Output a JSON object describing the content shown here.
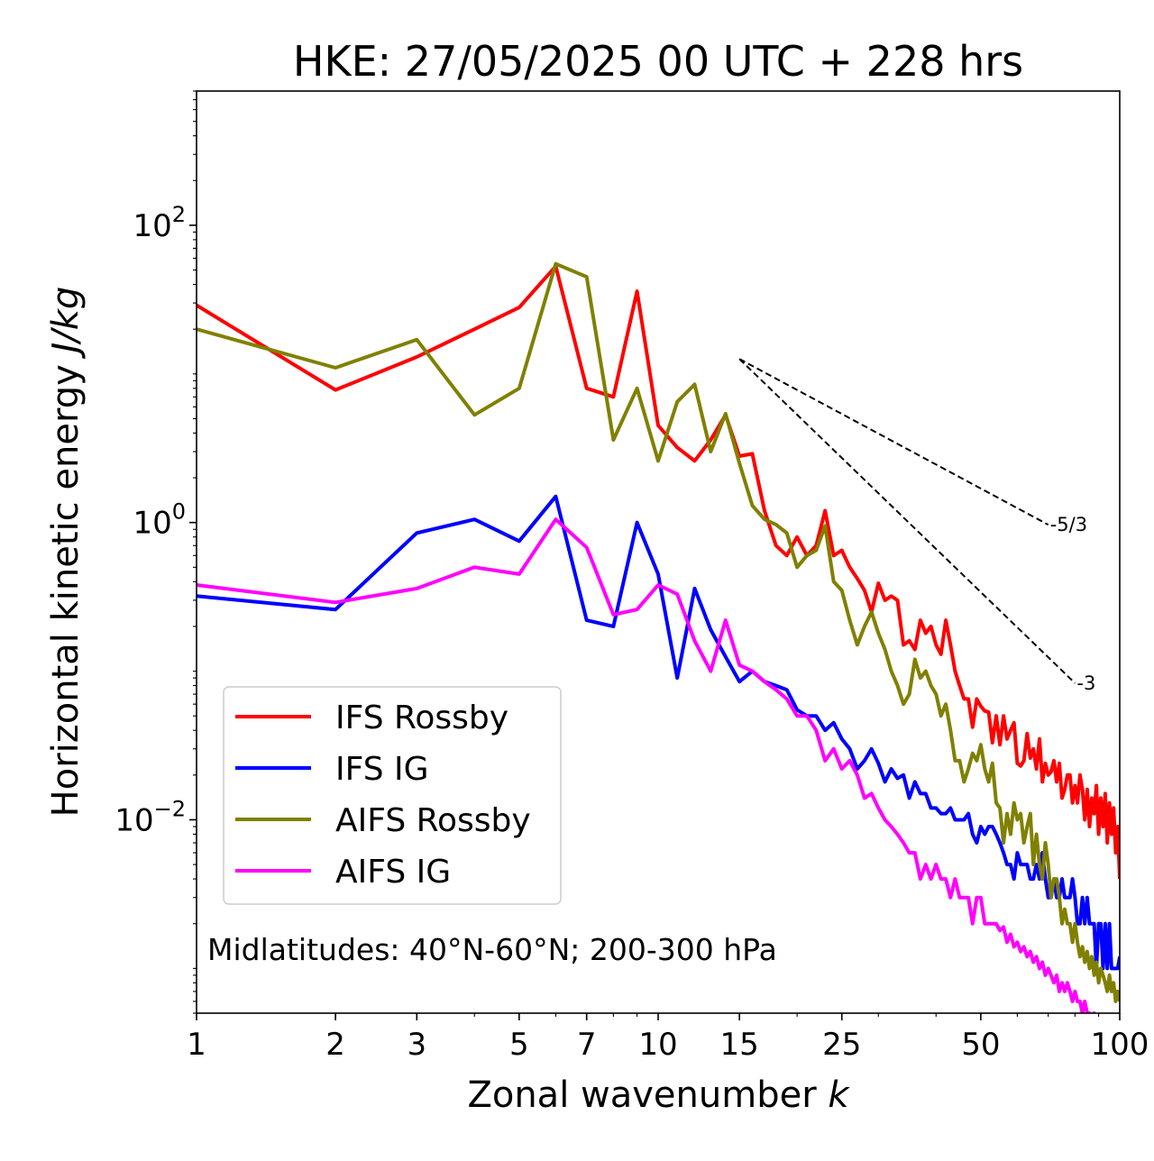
{
  "chart_data": {
    "type": "line",
    "title": "HKE: 27/05/2025 00 UTC + 228 hrs",
    "xlabel": "Zonal wavenumber",
    "xlabel_var": "k",
    "ylabel": "Horizontal kinetic energy",
    "ylabel_unit": "J/kg",
    "xscale": "log",
    "yscale": "log",
    "xlim": [
      1,
      100
    ],
    "ylim": [
      0.0005,
      800
    ],
    "x_ticks": [
      1,
      2,
      3,
      5,
      7,
      10,
      15,
      25,
      50,
      100
    ],
    "x_tick_labels": [
      "1",
      "2",
      "3",
      "5",
      "7",
      "10",
      "15",
      "25",
      "50",
      "100"
    ],
    "y_ticks": [
      0.01,
      1,
      100
    ],
    "y_tick_labels": [
      {
        "base": "10",
        "exp": "−2"
      },
      {
        "base": "10",
        "exp": "0"
      },
      {
        "base": "10",
        "exp": "2"
      }
    ],
    "legend_position": "lower-left",
    "annotation": "Midlatitudes: 40°N-60°N; 200-300 hPa",
    "reference_lines": [
      {
        "label": "-5/3",
        "slope": -1.6667,
        "x": [
          15,
          70
        ],
        "y0": 12.6
      },
      {
        "label": "-3",
        "slope": -3,
        "x": [
          15,
          80
        ],
        "y0": 12.6
      }
    ],
    "series": [
      {
        "name": "IFS Rossby",
        "color": "#ff0000",
        "x": [
          1,
          2,
          3,
          4,
          5,
          6,
          7,
          8,
          9,
          10,
          11,
          12,
          13,
          14,
          15,
          16,
          17,
          18,
          19,
          20,
          21,
          22,
          23,
          24,
          25,
          26,
          27,
          28,
          29,
          30,
          31,
          32,
          33,
          34,
          35,
          36,
          37,
          38,
          39,
          40,
          41,
          42,
          43,
          44,
          45,
          46,
          47,
          48,
          49,
          50,
          51,
          52,
          53,
          54,
          55,
          56,
          57,
          58,
          59,
          60,
          61,
          62,
          63,
          64,
          65,
          66,
          67,
          68,
          69,
          70,
          71,
          72,
          73,
          74,
          75,
          76,
          77,
          78,
          79,
          80,
          81,
          82,
          83,
          84,
          85,
          86,
          87,
          88,
          89,
          90,
          91,
          92,
          93,
          94,
          95,
          96,
          97,
          98,
          99,
          100
        ],
        "y": [
          29,
          7.8,
          13,
          20,
          28,
          53,
          8,
          7,
          36,
          4.5,
          3.2,
          2.6,
          3.6,
          5.3,
          2.8,
          2.9,
          1.2,
          0.7,
          0.6,
          0.8,
          0.6,
          0.7,
          1.2,
          0.6,
          0.65,
          0.5,
          0.42,
          0.35,
          0.25,
          0.39,
          0.3,
          0.32,
          0.3,
          0.15,
          0.16,
          0.14,
          0.22,
          0.18,
          0.2,
          0.15,
          0.13,
          0.22,
          0.15,
          0.1,
          0.08,
          0.065,
          0.065,
          0.042,
          0.065,
          0.058,
          0.054,
          0.053,
          0.033,
          0.05,
          0.032,
          0.05,
          0.035,
          0.04,
          0.045,
          0.024,
          0.023,
          0.025,
          0.038,
          0.026,
          0.03,
          0.022,
          0.035,
          0.018,
          0.024,
          0.02,
          0.021,
          0.025,
          0.018,
          0.024,
          0.014,
          0.016,
          0.02,
          0.02,
          0.013,
          0.017,
          0.013,
          0.02,
          0.016,
          0.01,
          0.016,
          0.009,
          0.014,
          0.011,
          0.017,
          0.008,
          0.014,
          0.009,
          0.015,
          0.007,
          0.013,
          0.008,
          0.012,
          0.006,
          0.009,
          0.004
        ]
      },
      {
        "name": "IFS IG",
        "color": "#0000ff",
        "x": [
          1,
          2,
          3,
          4,
          5,
          6,
          7,
          8,
          9,
          10,
          11,
          12,
          13,
          14,
          15,
          16,
          17,
          18,
          19,
          20,
          21,
          22,
          23,
          24,
          25,
          26,
          27,
          28,
          29,
          30,
          31,
          32,
          33,
          34,
          35,
          36,
          37,
          38,
          39,
          40,
          41,
          42,
          43,
          44,
          45,
          46,
          47,
          48,
          49,
          50,
          51,
          52,
          53,
          54,
          55,
          56,
          57,
          58,
          59,
          60,
          61,
          62,
          63,
          64,
          65,
          66,
          67,
          68,
          69,
          70,
          71,
          72,
          73,
          74,
          75,
          76,
          77,
          78,
          79,
          80,
          81,
          82,
          83,
          84,
          85,
          86,
          87,
          88,
          89,
          90,
          91,
          92,
          93,
          94,
          95,
          96,
          97,
          98,
          99,
          100
        ],
        "y": [
          0.32,
          0.26,
          0.85,
          1.05,
          0.75,
          1.5,
          0.22,
          0.2,
          1,
          0.45,
          0.09,
          0.36,
          0.19,
          0.125,
          0.085,
          0.1,
          0.085,
          0.08,
          0.075,
          0.055,
          0.05,
          0.05,
          0.04,
          0.045,
          0.035,
          0.03,
          0.022,
          0.025,
          0.03,
          0.024,
          0.018,
          0.022,
          0.019,
          0.02,
          0.014,
          0.018,
          0.015,
          0.015,
          0.012,
          0.012,
          0.011,
          0.011,
          0.012,
          0.01,
          0.01,
          0.01,
          0.011,
          0.008,
          0.007,
          0.009,
          0.008,
          0.009,
          0.009,
          0.008,
          0.007,
          0.006,
          0.005,
          0.005,
          0.004,
          0.006,
          0.005,
          0.005,
          0.005,
          0.004,
          0.004,
          0.005,
          0.004,
          0.006,
          0.004,
          0.003,
          0.003,
          0.004,
          0.003,
          0.003,
          0.004,
          0.003,
          0.003,
          0.003,
          0.004,
          0.003,
          0.002,
          0.002,
          0.003,
          0.002,
          0.003,
          0.002,
          0.002,
          0.002,
          0.001,
          0.002,
          0.002,
          0.001,
          0.002,
          0.001,
          0.002,
          0.001,
          0.001,
          0.001,
          0.001,
          0.0012
        ]
      },
      {
        "name": "AIFS Rossby",
        "color": "#808000",
        "x": [
          1,
          2,
          3,
          4,
          5,
          6,
          7,
          8,
          9,
          10,
          11,
          12,
          13,
          14,
          15,
          16,
          17,
          18,
          19,
          20,
          21,
          22,
          23,
          24,
          25,
          26,
          27,
          28,
          29,
          30,
          31,
          32,
          33,
          34,
          35,
          36,
          37,
          38,
          39,
          40,
          41,
          42,
          43,
          44,
          45,
          46,
          47,
          48,
          49,
          50,
          51,
          52,
          53,
          54,
          55,
          56,
          57,
          58,
          59,
          60,
          61,
          62,
          63,
          64,
          65,
          66,
          67,
          68,
          69,
          70,
          71,
          72,
          73,
          74,
          75,
          76,
          77,
          78,
          79,
          80,
          81,
          82,
          83,
          84,
          85,
          86,
          87,
          88,
          89,
          90,
          91,
          92,
          93,
          94,
          95,
          96,
          97,
          98,
          99,
          100
        ],
        "y": [
          20,
          11,
          17,
          5.3,
          8,
          55,
          45,
          3.6,
          8,
          2.6,
          6.5,
          8.5,
          3,
          5.4,
          2.5,
          1.3,
          1.05,
          0.97,
          0.85,
          0.5,
          0.6,
          0.65,
          0.95,
          0.4,
          0.35,
          0.22,
          0.15,
          0.2,
          0.25,
          0.18,
          0.14,
          0.1,
          0.08,
          0.06,
          0.07,
          0.12,
          0.09,
          0.1,
          0.08,
          0.07,
          0.05,
          0.06,
          0.04,
          0.025,
          0.025,
          0.018,
          0.022,
          0.028,
          0.025,
          0.032,
          0.022,
          0.018,
          0.024,
          0.013,
          0.012,
          0.007,
          0.011,
          0.008,
          0.013,
          0.01,
          0.011,
          0.007,
          0.009,
          0.011,
          0.005,
          0.008,
          0.005,
          0.004,
          0.007,
          0.005,
          0.003,
          0.004,
          0.004,
          0.003,
          0.002,
          0.0025,
          0.002,
          0.002,
          0.0015,
          0.002,
          0.0015,
          0.0012,
          0.0014,
          0.0011,
          0.0013,
          0.001,
          0.0012,
          0.0009,
          0.0011,
          0.0008,
          0.001,
          0.0009,
          0.0008,
          0.0007,
          0.0009,
          0.0007,
          0.0008,
          0.0006,
          0.0007,
          0.0006
        ]
      },
      {
        "name": "AIFS IG",
        "color": "#ff00ff",
        "x": [
          1,
          2,
          3,
          4,
          5,
          6,
          7,
          8,
          9,
          10,
          11,
          12,
          13,
          14,
          15,
          16,
          17,
          18,
          19,
          20,
          21,
          22,
          23,
          24,
          25,
          26,
          27,
          28,
          29,
          30,
          31,
          32,
          33,
          34,
          35,
          36,
          37,
          38,
          39,
          40,
          41,
          42,
          43,
          44,
          45,
          46,
          47,
          48,
          49,
          50,
          51,
          52,
          53,
          54,
          55,
          56,
          57,
          58,
          59,
          60,
          61,
          62,
          63,
          64,
          65,
          66,
          67,
          68,
          69,
          70,
          71,
          72,
          73,
          74,
          75,
          76,
          77,
          78,
          79,
          80,
          81,
          82,
          83,
          84,
          85,
          86,
          87,
          88,
          89,
          90,
          91,
          92,
          93,
          94,
          95,
          96,
          97,
          98,
          99,
          100
        ],
        "y": [
          0.38,
          0.29,
          0.36,
          0.5,
          0.45,
          1.05,
          0.68,
          0.24,
          0.26,
          0.38,
          0.33,
          0.16,
          0.1,
          0.22,
          0.11,
          0.1,
          0.085,
          0.075,
          0.065,
          0.05,
          0.05,
          0.04,
          0.025,
          0.03,
          0.022,
          0.025,
          0.02,
          0.014,
          0.015,
          0.012,
          0.01,
          0.009,
          0.008,
          0.007,
          0.006,
          0.006,
          0.004,
          0.005,
          0.004,
          0.005,
          0.004,
          0.004,
          0.003,
          0.004,
          0.003,
          0.003,
          0.003,
          0.002,
          0.003,
          0.003,
          0.002,
          0.002,
          0.002,
          0.002,
          0.0018,
          0.0019,
          0.0015,
          0.0017,
          0.0014,
          0.0015,
          0.0013,
          0.0014,
          0.0012,
          0.0013,
          0.0011,
          0.0012,
          0.001,
          0.0011,
          0.0009,
          0.001,
          0.0009,
          0.0008,
          0.0009,
          0.0007,
          0.0008,
          0.0007,
          0.0008,
          0.0007,
          0.0006,
          0.0007,
          0.0006,
          0.0006,
          0.0005,
          0.0006,
          0.0005,
          0.0005,
          0.0004,
          0.0005,
          0.0004,
          0.0004,
          0.0004,
          0.0003,
          0.0004,
          0.0003,
          0.0003,
          0.0003,
          0.0003,
          0.0003,
          0.0003,
          0.0003
        ]
      }
    ]
  }
}
